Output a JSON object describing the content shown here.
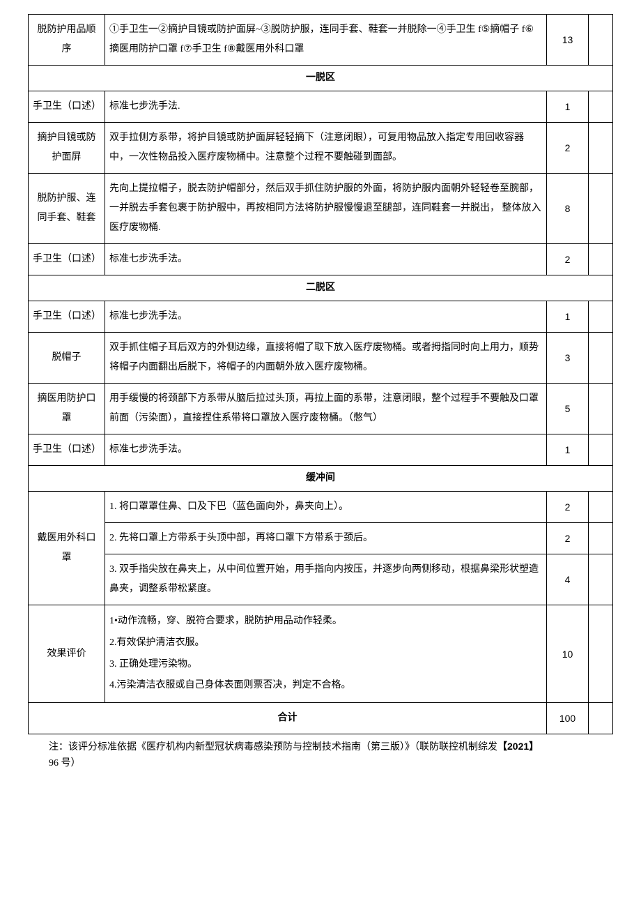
{
  "rows": {
    "r0": {
      "label": "脱防护用品顺序",
      "desc": "①手卫生一②摘护目镜或防护面屏~③脱防护服，连同手套、鞋套一并脱除一④手卫生 f⑤摘帽子 f⑥摘医用防护口罩 f⑦手卫生 f⑧戴医用外科口罩",
      "score": "13"
    },
    "s1": "一脱区",
    "r1": {
      "label": "手卫生（口述）",
      "desc": "标准七步洗手法.",
      "score": "1"
    },
    "r2": {
      "label": "摘护目镜或防护面屏",
      "desc": "双手拉侧方系带，将护目镜或防护面屏轻轻摘下（注意闭眼），可复用物品放入指定专用回收容器中，一次性物品投入医疗废物桶中。注意整个过程不要触碰到面部。",
      "score": "2"
    },
    "r3": {
      "label": "脱防护服、连同手套、鞋套",
      "desc": "先向上提拉帽子，脱去防护帽部分，然后双手抓住防护服的外面，将防护服内面朝外轻轻卷至腕部，一并脱去手套包裹于防护服中，再按相同方法将防护服慢慢退至腿部，连同鞋套一并脱出， 整体放入医疗废物桶.",
      "score": "8"
    },
    "r4": {
      "label": "手卫生（口述）",
      "desc": "标准七步洗手法。",
      "score": "2"
    },
    "s2": "二脱区",
    "r5": {
      "label": "手卫生（口述）",
      "desc": "标准七步洗手法。",
      "score": "1"
    },
    "r6": {
      "label": "脱帽子",
      "desc": "双手抓住帽子耳后双方的外侧边缘，直接将帽了取下放入医疗废物桶。或者拇指同时向上用力，顺势将帽子内面翻出后脱下，将帽子的内面朝外放入医疗废物桶。",
      "score": "3"
    },
    "r7": {
      "label": "摘医用防护口罩",
      "desc": "用手缓慢的将颈部下方系带从脑后拉过头顶，再拉上面的系带，注意闭眼，整个过程手不要触及口罩前面（污染面），直接捏住系带将口罩放入医疗废物桶。（憋气）",
      "score": "5"
    },
    "r8": {
      "label": "手卫生（口述）",
      "desc": "标准七步洗手法。",
      "score": "1"
    },
    "s3": "缓冲间",
    "r9": {
      "label": "戴医用外科口罩",
      "sub1": {
        "desc": "1. 将口罩罩住鼻、口及下巴（蓝色面向外，鼻夹向上）。",
        "score": "2"
      },
      "sub2": {
        "desc": "2. 先将口罩上方带系于头顶中部，再将口罩下方带系于颈后。",
        "score": "2"
      },
      "sub3": {
        "desc": "3. 双手指尖放在鼻夹上，从中间位置开始，用手指向内按压，并逐步向两侧移动，根据鼻梁形状塑造鼻夹，调整系带松紧度。",
        "score": "4"
      }
    },
    "r10": {
      "label": "效果评价",
      "line1": "1•动作流畅，穿、脱符合要求，脱防护用品动作轻柔。",
      "line2": "2.有效保护清洁衣服。",
      "line3": "3. 正确处理污染物。",
      "line4": "4.污染清洁衣服或自己身体表面则票否决，判定不合格。",
      "score": "10"
    },
    "total": {
      "label": "合计",
      "score": "100"
    }
  },
  "footnote": {
    "part1": "注：该评分标准依据《医疗机构内新型冠状病毒感染预防与控制技术指南（第三版）》（联防联控机制综发",
    "bracket": "【2021】",
    "part2": "96 号）"
  }
}
